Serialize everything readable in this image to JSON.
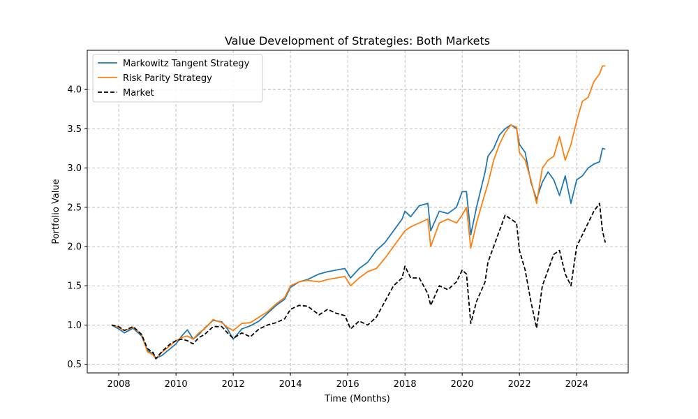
{
  "chart_data": {
    "type": "line",
    "title": "Value Development of Strategies: Both Markets",
    "xlabel": "Time (Months)",
    "ylabel": "Portfolio Value",
    "xlim": [
      2006.9,
      2025.8
    ],
    "ylim": [
      0.39,
      4.5
    ],
    "xticks": [
      2008,
      2010,
      2012,
      2014,
      2016,
      2018,
      2020,
      2022,
      2024
    ],
    "yticks": [
      0.5,
      1.0,
      1.5,
      2.0,
      2.5,
      3.0,
      3.5,
      4.0
    ],
    "xtick_labels": [
      "2008",
      "2010",
      "2012",
      "2014",
      "2016",
      "2018",
      "2020",
      "2022",
      "2024"
    ],
    "ytick_labels": [
      "0.5",
      "1.0",
      "1.5",
      "2.0",
      "2.5",
      "3.0",
      "3.5",
      "4.0"
    ],
    "grid": true,
    "legend_position": "upper-left",
    "series": [
      {
        "name": "Markowitz Tangent Strategy",
        "color": "#1f77b4",
        "style": "solid",
        "points": [
          [
            2007.75,
            1.0
          ],
          [
            2008.0,
            0.95
          ],
          [
            2008.2,
            0.9
          ],
          [
            2008.5,
            0.96
          ],
          [
            2008.8,
            0.86
          ],
          [
            2009.0,
            0.68
          ],
          [
            2009.2,
            0.63
          ],
          [
            2009.3,
            0.58
          ],
          [
            2009.5,
            0.61
          ],
          [
            2009.8,
            0.7
          ],
          [
            2010.0,
            0.76
          ],
          [
            2010.2,
            0.86
          ],
          [
            2010.4,
            0.94
          ],
          [
            2010.6,
            0.82
          ],
          [
            2010.8,
            0.88
          ],
          [
            2011.0,
            0.96
          ],
          [
            2011.3,
            1.06
          ],
          [
            2011.6,
            1.04
          ],
          [
            2011.8,
            0.95
          ],
          [
            2012.0,
            0.82
          ],
          [
            2012.3,
            0.95
          ],
          [
            2012.6,
            0.99
          ],
          [
            2012.9,
            1.05
          ],
          [
            2013.2,
            1.15
          ],
          [
            2013.5,
            1.25
          ],
          [
            2013.8,
            1.33
          ],
          [
            2014.0,
            1.48
          ],
          [
            2014.3,
            1.55
          ],
          [
            2014.6,
            1.58
          ],
          [
            2015.0,
            1.65
          ],
          [
            2015.3,
            1.68
          ],
          [
            2015.6,
            1.7
          ],
          [
            2015.9,
            1.72
          ],
          [
            2016.1,
            1.6
          ],
          [
            2016.4,
            1.72
          ],
          [
            2016.7,
            1.8
          ],
          [
            2017.0,
            1.95
          ],
          [
            2017.3,
            2.05
          ],
          [
            2017.6,
            2.2
          ],
          [
            2017.9,
            2.35
          ],
          [
            2018.0,
            2.45
          ],
          [
            2018.2,
            2.38
          ],
          [
            2018.5,
            2.52
          ],
          [
            2018.8,
            2.55
          ],
          [
            2018.9,
            2.2
          ],
          [
            2019.2,
            2.45
          ],
          [
            2019.5,
            2.42
          ],
          [
            2019.8,
            2.5
          ],
          [
            2020.0,
            2.7
          ],
          [
            2020.15,
            2.7
          ],
          [
            2020.3,
            2.15
          ],
          [
            2020.5,
            2.5
          ],
          [
            2020.8,
            2.95
          ],
          [
            2020.9,
            3.15
          ],
          [
            2021.1,
            3.25
          ],
          [
            2021.3,
            3.42
          ],
          [
            2021.5,
            3.5
          ],
          [
            2021.7,
            3.55
          ],
          [
            2021.9,
            3.5
          ],
          [
            2022.0,
            3.3
          ],
          [
            2022.2,
            3.2
          ],
          [
            2022.4,
            2.82
          ],
          [
            2022.6,
            2.6
          ],
          [
            2022.8,
            2.82
          ],
          [
            2023.0,
            2.95
          ],
          [
            2023.2,
            2.85
          ],
          [
            2023.4,
            2.65
          ],
          [
            2023.6,
            2.9
          ],
          [
            2023.8,
            2.55
          ],
          [
            2024.0,
            2.85
          ],
          [
            2024.2,
            2.9
          ],
          [
            2024.4,
            3.0
          ],
          [
            2024.6,
            3.05
          ],
          [
            2024.8,
            3.08
          ],
          [
            2024.9,
            3.25
          ],
          [
            2025.0,
            3.24
          ]
        ]
      },
      {
        "name": "Risk Parity Strategy",
        "color": "#ff7f0e",
        "style": "solid",
        "points": [
          [
            2007.75,
            1.0
          ],
          [
            2008.0,
            0.97
          ],
          [
            2008.2,
            0.93
          ],
          [
            2008.5,
            0.97
          ],
          [
            2008.8,
            0.88
          ],
          [
            2009.0,
            0.66
          ],
          [
            2009.2,
            0.62
          ],
          [
            2009.3,
            0.57
          ],
          [
            2009.5,
            0.65
          ],
          [
            2009.8,
            0.74
          ],
          [
            2010.0,
            0.8
          ],
          [
            2010.2,
            0.84
          ],
          [
            2010.4,
            0.86
          ],
          [
            2010.6,
            0.82
          ],
          [
            2010.8,
            0.9
          ],
          [
            2011.0,
            0.95
          ],
          [
            2011.3,
            1.07
          ],
          [
            2011.6,
            1.03
          ],
          [
            2011.8,
            0.97
          ],
          [
            2012.0,
            0.93
          ],
          [
            2012.3,
            1.02
          ],
          [
            2012.6,
            1.03
          ],
          [
            2012.9,
            1.1
          ],
          [
            2013.2,
            1.17
          ],
          [
            2013.5,
            1.27
          ],
          [
            2013.8,
            1.35
          ],
          [
            2014.0,
            1.5
          ],
          [
            2014.3,
            1.55
          ],
          [
            2014.6,
            1.57
          ],
          [
            2015.0,
            1.55
          ],
          [
            2015.3,
            1.58
          ],
          [
            2015.6,
            1.6
          ],
          [
            2015.9,
            1.62
          ],
          [
            2016.1,
            1.5
          ],
          [
            2016.4,
            1.6
          ],
          [
            2016.7,
            1.68
          ],
          [
            2017.0,
            1.72
          ],
          [
            2017.3,
            1.85
          ],
          [
            2017.6,
            2.0
          ],
          [
            2017.9,
            2.15
          ],
          [
            2018.0,
            2.2
          ],
          [
            2018.2,
            2.25
          ],
          [
            2018.5,
            2.3
          ],
          [
            2018.8,
            2.35
          ],
          [
            2018.9,
            2.0
          ],
          [
            2019.2,
            2.3
          ],
          [
            2019.5,
            2.35
          ],
          [
            2019.8,
            2.3
          ],
          [
            2020.0,
            2.4
          ],
          [
            2020.15,
            2.5
          ],
          [
            2020.3,
            1.98
          ],
          [
            2020.5,
            2.3
          ],
          [
            2020.8,
            2.68
          ],
          [
            2020.9,
            2.8
          ],
          [
            2021.1,
            3.1
          ],
          [
            2021.3,
            3.3
          ],
          [
            2021.5,
            3.45
          ],
          [
            2021.7,
            3.55
          ],
          [
            2021.9,
            3.52
          ],
          [
            2022.0,
            3.2
          ],
          [
            2022.2,
            3.1
          ],
          [
            2022.4,
            2.85
          ],
          [
            2022.6,
            2.55
          ],
          [
            2022.8,
            3.0
          ],
          [
            2023.0,
            3.1
          ],
          [
            2023.2,
            3.15
          ],
          [
            2023.4,
            3.4
          ],
          [
            2023.6,
            3.1
          ],
          [
            2023.8,
            3.3
          ],
          [
            2024.0,
            3.6
          ],
          [
            2024.2,
            3.85
          ],
          [
            2024.4,
            3.9
          ],
          [
            2024.6,
            4.1
          ],
          [
            2024.8,
            4.2
          ],
          [
            2024.9,
            4.3
          ],
          [
            2025.0,
            4.3
          ]
        ]
      },
      {
        "name": "Market",
        "color": "#000000",
        "style": "dashed",
        "points": [
          [
            2007.75,
            1.0
          ],
          [
            2008.0,
            0.98
          ],
          [
            2008.2,
            0.93
          ],
          [
            2008.5,
            0.98
          ],
          [
            2008.8,
            0.88
          ],
          [
            2009.0,
            0.7
          ],
          [
            2009.2,
            0.65
          ],
          [
            2009.3,
            0.57
          ],
          [
            2009.5,
            0.66
          ],
          [
            2009.8,
            0.76
          ],
          [
            2010.0,
            0.8
          ],
          [
            2010.2,
            0.82
          ],
          [
            2010.4,
            0.8
          ],
          [
            2010.6,
            0.76
          ],
          [
            2010.8,
            0.84
          ],
          [
            2011.0,
            0.88
          ],
          [
            2011.3,
            0.98
          ],
          [
            2011.6,
            0.98
          ],
          [
            2011.8,
            0.9
          ],
          [
            2012.0,
            0.83
          ],
          [
            2012.3,
            0.9
          ],
          [
            2012.6,
            0.85
          ],
          [
            2012.9,
            0.95
          ],
          [
            2013.2,
            1.0
          ],
          [
            2013.5,
            1.03
          ],
          [
            2013.8,
            1.08
          ],
          [
            2014.0,
            1.2
          ],
          [
            2014.3,
            1.25
          ],
          [
            2014.6,
            1.24
          ],
          [
            2015.0,
            1.13
          ],
          [
            2015.3,
            1.2
          ],
          [
            2015.6,
            1.15
          ],
          [
            2015.9,
            1.12
          ],
          [
            2016.1,
            0.95
          ],
          [
            2016.4,
            1.05
          ],
          [
            2016.7,
            1.0
          ],
          [
            2017.0,
            1.1
          ],
          [
            2017.3,
            1.3
          ],
          [
            2017.6,
            1.5
          ],
          [
            2017.9,
            1.6
          ],
          [
            2018.0,
            1.75
          ],
          [
            2018.2,
            1.6
          ],
          [
            2018.5,
            1.6
          ],
          [
            2018.8,
            1.4
          ],
          [
            2018.9,
            1.25
          ],
          [
            2019.2,
            1.5
          ],
          [
            2019.5,
            1.45
          ],
          [
            2019.8,
            1.55
          ],
          [
            2020.0,
            1.7
          ],
          [
            2020.15,
            1.65
          ],
          [
            2020.3,
            1.02
          ],
          [
            2020.5,
            1.3
          ],
          [
            2020.8,
            1.55
          ],
          [
            2020.9,
            1.8
          ],
          [
            2021.1,
            2.0
          ],
          [
            2021.3,
            2.2
          ],
          [
            2021.5,
            2.4
          ],
          [
            2021.7,
            2.35
          ],
          [
            2021.9,
            2.3
          ],
          [
            2022.0,
            1.95
          ],
          [
            2022.2,
            1.7
          ],
          [
            2022.4,
            1.3
          ],
          [
            2022.6,
            0.96
          ],
          [
            2022.8,
            1.5
          ],
          [
            2023.0,
            1.7
          ],
          [
            2023.2,
            1.9
          ],
          [
            2023.4,
            1.95
          ],
          [
            2023.6,
            1.65
          ],
          [
            2023.8,
            1.5
          ],
          [
            2024.0,
            2.0
          ],
          [
            2024.2,
            2.15
          ],
          [
            2024.4,
            2.3
          ],
          [
            2024.6,
            2.45
          ],
          [
            2024.8,
            2.55
          ],
          [
            2024.9,
            2.2
          ],
          [
            2025.0,
            2.05
          ]
        ]
      }
    ]
  }
}
